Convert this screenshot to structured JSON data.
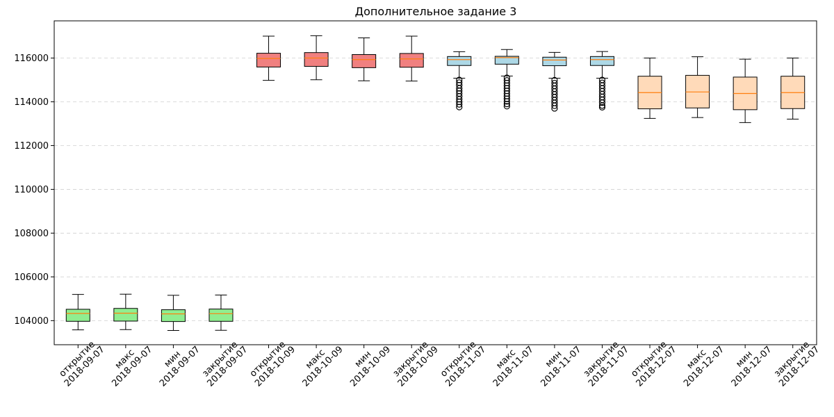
{
  "chart_data": {
    "type": "box",
    "title": "Дополнительное задание 3",
    "xlabel": "",
    "ylabel": "",
    "ylim": [
      102900,
      117700
    ],
    "y_ticks": [
      104000,
      106000,
      108000,
      110000,
      112000,
      114000,
      116000
    ],
    "grid": "horizontal-dashed",
    "categories": [
      [
        "открытие",
        "2018-09-07"
      ],
      [
        "макс",
        "2018-09-07"
      ],
      [
        "мин",
        "2018-09-07"
      ],
      [
        "закрытие",
        "2018-09-07"
      ],
      [
        "открытие",
        "2018-10-09"
      ],
      [
        "макс",
        "2018-10-09"
      ],
      [
        "мин",
        "2018-10-09"
      ],
      [
        "закрытие",
        "2018-10-09"
      ],
      [
        "открытие",
        "2018-11-07"
      ],
      [
        "макс",
        "2018-11-07"
      ],
      [
        "мин",
        "2018-11-07"
      ],
      [
        "закрытие",
        "2018-11-07"
      ],
      [
        "открытие",
        "2018-12-07"
      ],
      [
        "макс",
        "2018-12-07"
      ],
      [
        "мин",
        "2018-12-07"
      ],
      [
        "закрытие",
        "2018-12-07"
      ]
    ],
    "group_colors": [
      "#90ee90",
      "#f08080",
      "#add8e6",
      "#ffdab9"
    ],
    "median_color": "#ff7f0e",
    "boxes": [
      {
        "group": 0,
        "whislo": 103580,
        "q1": 103970,
        "med": 104330,
        "q3": 104520,
        "whishi": 105200,
        "fliers": []
      },
      {
        "group": 0,
        "whislo": 103590,
        "q1": 103980,
        "med": 104340,
        "q3": 104560,
        "whishi": 105210,
        "fliers": []
      },
      {
        "group": 0,
        "whislo": 103550,
        "q1": 103960,
        "med": 104310,
        "q3": 104500,
        "whishi": 105160,
        "fliers": []
      },
      {
        "group": 0,
        "whislo": 103560,
        "q1": 103970,
        "med": 104320,
        "q3": 104530,
        "whishi": 105170,
        "fliers": []
      },
      {
        "group": 1,
        "whislo": 114980,
        "q1": 115590,
        "med": 115980,
        "q3": 116220,
        "whishi": 117000,
        "fliers": []
      },
      {
        "group": 1,
        "whislo": 115010,
        "q1": 115620,
        "med": 116000,
        "q3": 116250,
        "whishi": 117020,
        "fliers": []
      },
      {
        "group": 1,
        "whislo": 114960,
        "q1": 115560,
        "med": 115930,
        "q3": 116160,
        "whishi": 116920,
        "fliers": []
      },
      {
        "group": 1,
        "whislo": 114950,
        "q1": 115580,
        "med": 115960,
        "q3": 116210,
        "whishi": 117000,
        "fliers": []
      },
      {
        "group": 2,
        "whislo": 115080,
        "q1": 115660,
        "med": 115930,
        "q3": 116070,
        "whishi": 116290,
        "fliers": [
          115000,
          114880,
          114760,
          114620,
          114500,
          114380,
          114250,
          114120,
          114000,
          113880,
          113760
        ]
      },
      {
        "group": 2,
        "whislo": 115180,
        "q1": 115720,
        "med": 116020,
        "q3": 116080,
        "whishi": 116390,
        "fliers": [
          115100,
          114980,
          114860,
          114740,
          114620,
          114500,
          114380,
          114260,
          114140,
          114020,
          113900,
          113800
        ]
      },
      {
        "group": 2,
        "whislo": 115080,
        "q1": 115650,
        "med": 115910,
        "q3": 116040,
        "whishi": 116260,
        "fliers": [
          114990,
          114860,
          114730,
          114600,
          114470,
          114340,
          114210,
          114080,
          113950,
          113820,
          113700
        ]
      },
      {
        "group": 2,
        "whislo": 115080,
        "q1": 115660,
        "med": 115930,
        "q3": 116070,
        "whishi": 116300,
        "fliers": [
          115000,
          114870,
          114740,
          114610,
          114480,
          114350,
          114220,
          114090,
          113960,
          113830,
          113750
        ]
      },
      {
        "group": 3,
        "whislo": 113240,
        "q1": 113680,
        "med": 114420,
        "q3": 115170,
        "whishi": 116000,
        "fliers": []
      },
      {
        "group": 3,
        "whislo": 113280,
        "q1": 113720,
        "med": 114450,
        "q3": 115210,
        "whishi": 116060,
        "fliers": []
      },
      {
        "group": 3,
        "whislo": 113050,
        "q1": 113640,
        "med": 114380,
        "q3": 115130,
        "whishi": 115950,
        "fliers": []
      },
      {
        "group": 3,
        "whislo": 113210,
        "q1": 113690,
        "med": 114420,
        "q3": 115170,
        "whishi": 116000,
        "fliers": []
      }
    ]
  }
}
